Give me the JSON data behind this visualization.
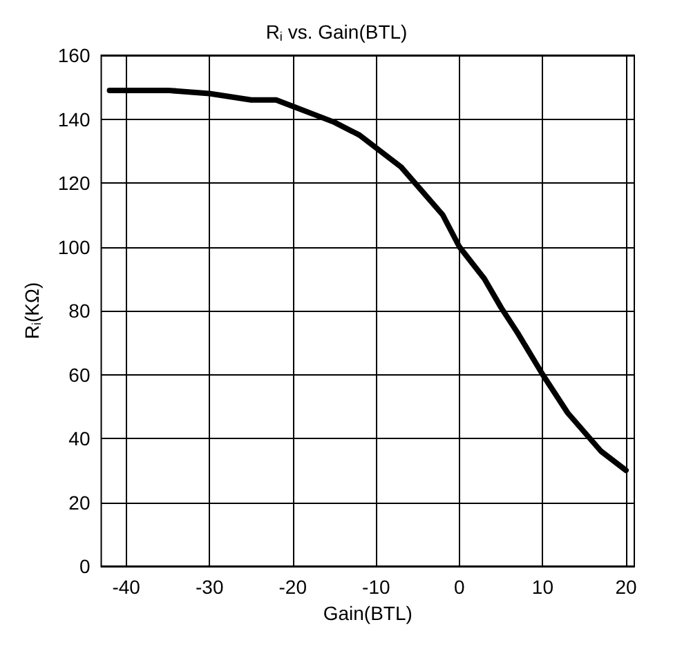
{
  "chart_data": {
    "type": "line",
    "title": "R$_{i}$ vs. Gain(BTL)",
    "xlabel": "Gain(BTL)",
    "ylabel": "R$_{i}$(KΩ)",
    "series": [
      {
        "color": "#000000",
        "x": [
          -42,
          -40,
          -35,
          -30,
          -25,
          -22,
          -20,
          -17,
          -15,
          -12,
          -10,
          -7,
          -5,
          -2,
          0,
          3,
          5,
          7,
          10,
          13,
          15,
          17,
          18,
          20
        ],
        "values": [
          149,
          149,
          149,
          148,
          146,
          146,
          144,
          141,
          139,
          135,
          131,
          125,
          119,
          110,
          100,
          90,
          81,
          73,
          60,
          48,
          42,
          36,
          34,
          30
        ]
      }
    ],
    "xlim": [
      -43,
      21
    ],
    "xticks": [
      -40,
      -30,
      -20,
      -10,
      0,
      10,
      20
    ],
    "ylim": [
      0,
      160
    ],
    "yticks": [
      0,
      20,
      40,
      60,
      80,
      100,
      120,
      140,
      160
    ],
    "grid": true,
    "marker": "none",
    "line_style": "solid"
  }
}
